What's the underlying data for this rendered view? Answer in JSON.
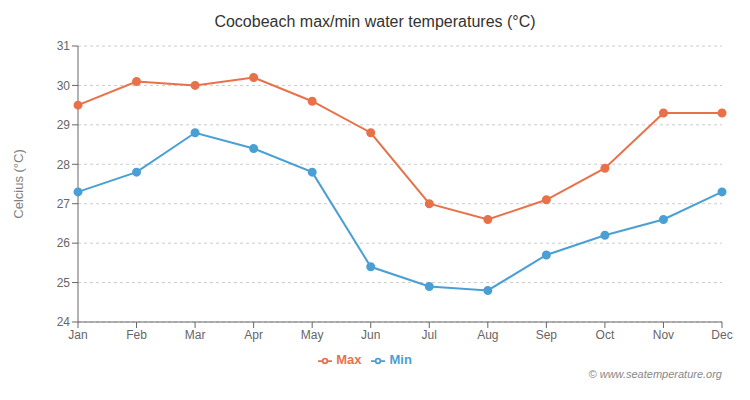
{
  "chart_data": {
    "type": "line",
    "title": "Cocobeach max/min water temperatures (°C)",
    "y_label": "Celcius (°C)",
    "categories": [
      "Jan",
      "Feb",
      "Mar",
      "Apr",
      "May",
      "Jun",
      "Jul",
      "Aug",
      "Sep",
      "Oct",
      "Nov",
      "Dec"
    ],
    "series": [
      {
        "name": "Max",
        "color": "#E8714A",
        "marker": "circle",
        "values": [
          29.5,
          30.1,
          30.0,
          30.2,
          29.6,
          28.8,
          27.0,
          26.6,
          27.1,
          27.9,
          29.3,
          29.3
        ]
      },
      {
        "name": "Min",
        "color": "#4A9FD4",
        "marker": "circle",
        "values": [
          27.3,
          27.8,
          28.8,
          28.4,
          27.8,
          25.4,
          24.9,
          24.8,
          25.7,
          26.2,
          26.6,
          27.3
        ]
      }
    ],
    "ylim": [
      24,
      31
    ],
    "yticks": [
      24,
      25,
      26,
      27,
      28,
      29,
      30,
      31
    ],
    "grid": true,
    "legend": "bottom",
    "annotations": [
      "© www.seatemperature.org"
    ]
  }
}
